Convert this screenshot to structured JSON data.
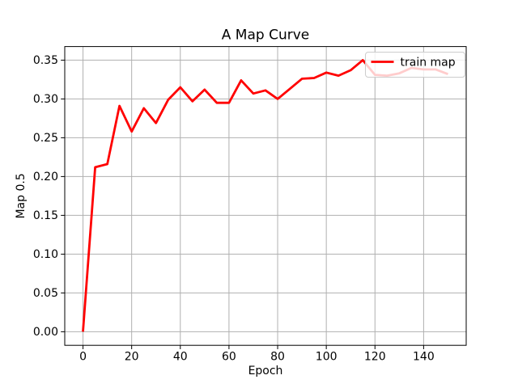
{
  "figure": {
    "title": "A Map Curve",
    "xlabel": "Epoch",
    "ylabel": "Map 0.5"
  },
  "chart_data": {
    "type": "line",
    "title": "A Map Curve",
    "xlabel": "Epoch",
    "ylabel": "Map 0.5",
    "xlim": [
      -7.5,
      157.5
    ],
    "ylim": [
      -0.0175,
      0.3675
    ],
    "x_tick_values": [
      0,
      20,
      40,
      60,
      80,
      100,
      120,
      140
    ],
    "x_tick_labels": [
      "0",
      "20",
      "40",
      "60",
      "80",
      "100",
      "120",
      "140"
    ],
    "y_tick_values": [
      0.0,
      0.05,
      0.1,
      0.15,
      0.2,
      0.25,
      0.3,
      0.35
    ],
    "y_tick_labels": [
      "0.00",
      "0.05",
      "0.10",
      "0.15",
      "0.20",
      "0.25",
      "0.30",
      "0.35"
    ],
    "grid": true,
    "legend": {
      "position": "upper right",
      "entries": [
        "train map"
      ]
    },
    "series": [
      {
        "name": "train map",
        "color": "#ff0000",
        "x": [
          0,
          5,
          10,
          15,
          20,
          25,
          30,
          35,
          40,
          45,
          50,
          55,
          60,
          65,
          70,
          75,
          80,
          85,
          90,
          95,
          100,
          105,
          110,
          115,
          120,
          125,
          130,
          135,
          140,
          145,
          150
        ],
        "y": [
          0.0,
          0.212,
          0.216,
          0.291,
          0.258,
          0.288,
          0.269,
          0.299,
          0.315,
          0.297,
          0.312,
          0.295,
          0.295,
          0.324,
          0.307,
          0.311,
          0.3,
          0.313,
          0.326,
          0.327,
          0.334,
          0.33,
          0.337,
          0.35,
          0.331,
          0.33,
          0.333,
          0.34,
          0.338,
          0.338,
          0.332
        ]
      }
    ],
    "colors": {
      "line": "#ff0000",
      "grid": "#b0b0b0",
      "spine": "#000000",
      "text": "#000000",
      "legend_edge": "#cccccc",
      "legend_face": "#ffffff"
    }
  }
}
